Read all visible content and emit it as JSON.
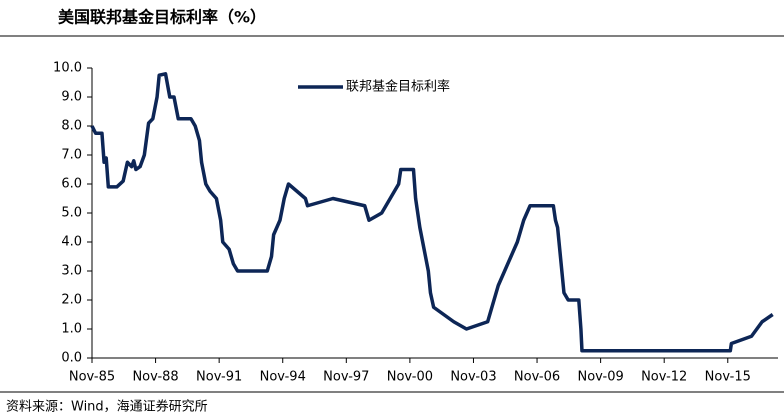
{
  "chart_data": {
    "type": "line",
    "title": "美国联邦基金目标利率（%）",
    "source": "资料来源：Wind，海通证券研究所",
    "x": [
      1985.83,
      1986.0,
      1986.3,
      1986.4,
      1986.5,
      1986.6,
      1987.0,
      1987.3,
      1987.5,
      1987.7,
      1987.8,
      1987.9,
      1988.1,
      1988.3,
      1988.5,
      1988.7,
      1988.9,
      1989.0,
      1989.3,
      1989.5,
      1989.7,
      1989.9,
      1990.5,
      1990.7,
      1990.9,
      1991.0,
      1991.2,
      1991.4,
      1991.7,
      1991.9,
      1992.0,
      1992.3,
      1992.5,
      1992.7,
      1994.1,
      1994.3,
      1994.4,
      1994.7,
      1994.9,
      1995.1,
      1995.5,
      1995.9,
      1996.0,
      1997.2,
      1998.7,
      1998.8,
      1998.9,
      1999.5,
      1999.7,
      1999.9,
      2000.1,
      2000.3,
      2000.4,
      2001.0,
      2001.05,
      2001.1,
      2001.3,
      2001.5,
      2001.7,
      2001.8,
      2001.95,
      2002.9,
      2003.5,
      2004.5,
      2004.6,
      2004.8,
      2005.0,
      2005.3,
      2005.6,
      2005.9,
      2006.2,
      2006.5,
      2007.6,
      2007.7,
      2007.8,
      2008.0,
      2008.1,
      2008.3,
      2008.8,
      2008.85,
      2008.9,
      2008.95,
      2015.95,
      2016.0,
      2016.95,
      2017.2,
      2017.45,
      2017.95
    ],
    "series": [
      {
        "name": "联邦基金目标利率",
        "color": "#0d2656",
        "values": [
          8.0,
          7.75,
          7.75,
          6.75,
          6.9,
          5.9,
          5.9,
          6.1,
          6.75,
          6.6,
          6.8,
          6.5,
          6.6,
          7.0,
          8.1,
          8.25,
          9.0,
          9.75,
          9.8,
          9.0,
          9.0,
          8.25,
          8.25,
          8.0,
          7.5,
          6.75,
          6.0,
          5.75,
          5.5,
          4.75,
          4.0,
          3.75,
          3.25,
          3.0,
          3.0,
          3.5,
          4.25,
          4.75,
          5.5,
          6.0,
          5.75,
          5.5,
          5.25,
          5.5,
          5.25,
          5.0,
          4.75,
          5.0,
          5.25,
          5.5,
          5.75,
          6.0,
          6.5,
          6.5,
          6.0,
          5.5,
          4.5,
          3.75,
          3.0,
          2.25,
          1.75,
          1.25,
          1.0,
          1.25,
          1.5,
          2.0,
          2.5,
          3.0,
          3.5,
          4.0,
          4.75,
          5.25,
          5.25,
          4.75,
          4.5,
          3.0,
          2.25,
          2.0,
          2.0,
          1.5,
          1.0,
          0.25,
          0.25,
          0.5,
          0.75,
          1.0,
          1.25,
          1.5
        ]
      }
    ],
    "xlim": [
      1985.83,
      2018.2
    ],
    "xticks": [
      {
        "value": 1985.83,
        "label": "Nov-85"
      },
      {
        "value": 1988.83,
        "label": "Nov-88"
      },
      {
        "value": 1991.83,
        "label": "Nov-91"
      },
      {
        "value": 1994.83,
        "label": "Nov-94"
      },
      {
        "value": 1997.83,
        "label": "Nov-97"
      },
      {
        "value": 2000.83,
        "label": "Nov-00"
      },
      {
        "value": 2003.83,
        "label": "Nov-03"
      },
      {
        "value": 2006.83,
        "label": "Nov-06"
      },
      {
        "value": 2009.83,
        "label": "Nov-09"
      },
      {
        "value": 2012.83,
        "label": "Nov-12"
      },
      {
        "value": 2015.83,
        "label": "Nov-15"
      }
    ],
    "ylim": [
      0,
      10
    ],
    "yticks": [
      {
        "value": 0,
        "label": "0.0"
      },
      {
        "value": 1,
        "label": "1.0"
      },
      {
        "value": 2,
        "label": "2.0"
      },
      {
        "value": 3,
        "label": "3.0"
      },
      {
        "value": 4,
        "label": "4.0"
      },
      {
        "value": 5,
        "label": "5.0"
      },
      {
        "value": 6,
        "label": "6.0"
      },
      {
        "value": 7,
        "label": "7.0"
      },
      {
        "value": 8,
        "label": "8.0"
      },
      {
        "value": 9,
        "label": "9.0"
      },
      {
        "value": 10,
        "label": "10.0"
      }
    ],
    "grid": false
  }
}
